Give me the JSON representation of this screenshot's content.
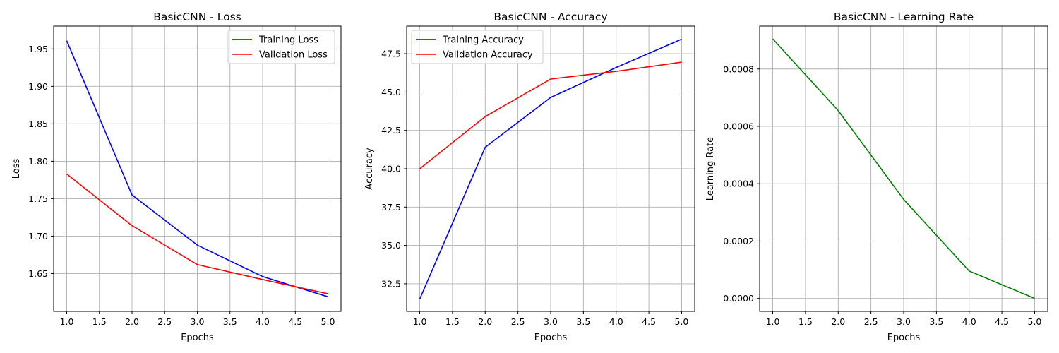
{
  "chart_data": [
    {
      "type": "line",
      "title": "BasicCNN - Loss",
      "xlabel": "Epochs",
      "ylabel": "Loss",
      "x": [
        1,
        2,
        3,
        4,
        5
      ],
      "xlim": [
        0.8,
        5.2
      ],
      "ylim": [
        1.5995,
        1.9805
      ],
      "xticks": [
        1.0,
        1.5,
        2.0,
        2.5,
        3.0,
        3.5,
        4.0,
        4.5,
        5.0
      ],
      "xtick_labels": [
        "1.0",
        "1.5",
        "2.0",
        "2.5",
        "3.0",
        "3.5",
        "4.0",
        "4.5",
        "5.0"
      ],
      "yticks": [
        1.65,
        1.7,
        1.75,
        1.8,
        1.85,
        1.9,
        1.95
      ],
      "ytick_labels": [
        "1.65",
        "1.70",
        "1.75",
        "1.80",
        "1.85",
        "1.90",
        "1.95"
      ],
      "grid": true,
      "legend": "top-right",
      "series": [
        {
          "name": "Training Loss",
          "color": "#0000ff",
          "values": [
            1.961,
            1.755,
            1.688,
            1.646,
            1.619
          ]
        },
        {
          "name": "Validation Loss",
          "color": "#ff0000",
          "values": [
            1.783,
            1.714,
            1.662,
            1.642,
            1.623
          ]
        }
      ]
    },
    {
      "type": "line",
      "title": "BasicCNN - Accuracy",
      "xlabel": "Epochs",
      "ylabel": "Accuracy",
      "x": [
        1,
        2,
        3,
        4,
        5
      ],
      "xlim": [
        0.8,
        5.2
      ],
      "ylim": [
        30.7,
        49.3
      ],
      "xticks": [
        1.0,
        1.5,
        2.0,
        2.5,
        3.0,
        3.5,
        4.0,
        4.5,
        5.0
      ],
      "xtick_labels": [
        "1.0",
        "1.5",
        "2.0",
        "2.5",
        "3.0",
        "3.5",
        "4.0",
        "4.5",
        "5.0"
      ],
      "yticks": [
        32.5,
        35.0,
        37.5,
        40.0,
        42.5,
        45.0,
        47.5
      ],
      "ytick_labels": [
        "32.5",
        "35.0",
        "37.5",
        "40.0",
        "42.5",
        "45.0",
        "47.5"
      ],
      "grid": true,
      "legend": "top-left",
      "series": [
        {
          "name": "Training Accuracy",
          "color": "#0000ff",
          "values": [
            31.5,
            41.4,
            44.65,
            46.6,
            48.45
          ]
        },
        {
          "name": "Validation Accuracy",
          "color": "#ff0000",
          "values": [
            40.0,
            43.4,
            45.85,
            46.35,
            46.95
          ]
        }
      ]
    },
    {
      "type": "line",
      "title": "BasicCNN - Learning Rate",
      "xlabel": "Epochs",
      "ylabel": "Learning Rate",
      "x": [
        1,
        2,
        3,
        4,
        5
      ],
      "xlim": [
        0.8,
        5.2
      ],
      "ylim": [
        -4.52e-05,
        0.0009496
      ],
      "xticks": [
        1.0,
        1.5,
        2.0,
        2.5,
        3.0,
        3.5,
        4.0,
        4.5,
        5.0
      ],
      "xtick_labels": [
        "1.0",
        "1.5",
        "2.0",
        "2.5",
        "3.0",
        "3.5",
        "4.0",
        "4.5",
        "5.0"
      ],
      "yticks": [
        0.0,
        0.0002,
        0.0004,
        0.0006,
        0.0008
      ],
      "ytick_labels": [
        "0.0000",
        "0.0002",
        "0.0004",
        "0.0006",
        "0.0008"
      ],
      "grid": true,
      "legend": "none",
      "series": [
        {
          "name": "",
          "color": "#008000",
          "values": [
            0.000905,
            0.000655,
            0.000345,
            9.55e-05,
            0.0
          ]
        }
      ]
    }
  ]
}
